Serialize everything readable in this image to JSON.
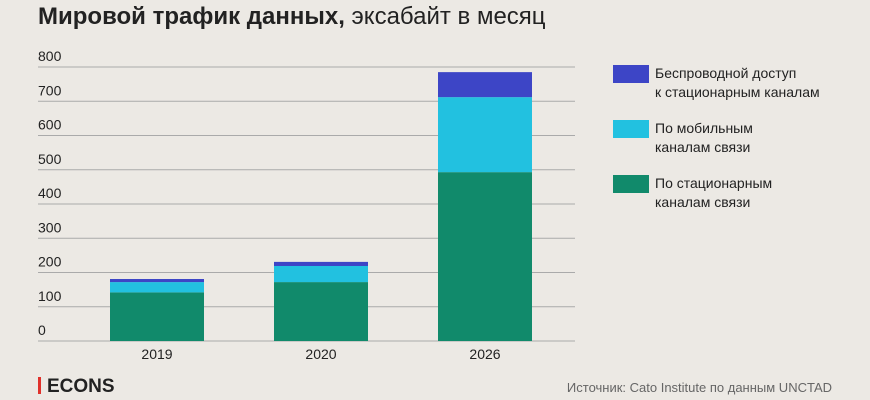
{
  "chart_data": {
    "type": "stacked_bar",
    "title": "Мировой трафик данных,",
    "subtitle": "эксабайт в месяц",
    "categories": [
      "2019",
      "2020",
      "2026"
    ],
    "series": [
      {
        "name": "По стационарным\nканалам связи",
        "color": "#118a6b",
        "values": [
          142,
          172,
          493
        ]
      },
      {
        "name": "По мобильным\nканалам связи",
        "color": "#22c1e0",
        "values": [
          30,
          47,
          219
        ]
      },
      {
        "name": "Беспроводной доступ\nк стационарным каналам",
        "color": "#3d45c6",
        "values": [
          9,
          12,
          73
        ]
      }
    ],
    "ylim": [
      0,
      800
    ],
    "yticks": [
      0,
      100,
      200,
      300,
      400,
      500,
      600,
      700,
      800
    ],
    "grid": true,
    "legend": "right",
    "logo": "ECONS",
    "source": "Источник: Cato Institute по данным UNCTAD"
  }
}
